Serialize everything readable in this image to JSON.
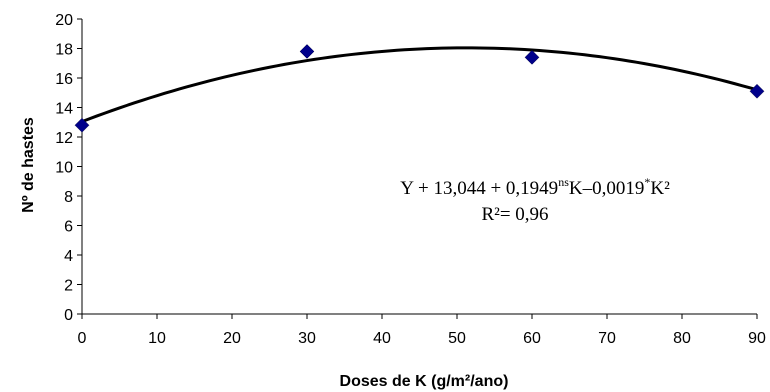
{
  "chart_data": {
    "type": "scatter",
    "xlabel": "Doses de K (g/m²/ano)",
    "ylabel": "Nº de hastes",
    "xlim": [
      0,
      90
    ],
    "ylim": [
      0,
      20
    ],
    "x_ticks": [
      0,
      10,
      20,
      30,
      40,
      50,
      60,
      70,
      80,
      90
    ],
    "y_ticks": [
      0,
      2,
      4,
      6,
      8,
      10,
      12,
      14,
      16,
      18,
      20
    ],
    "grid": false,
    "series": [
      {
        "x": [
          0,
          30,
          60,
          90
        ],
        "y": [
          12.8,
          17.8,
          17.4,
          15.1
        ],
        "marker": "diamond",
        "color": "#00008B"
      }
    ],
    "trendline": {
      "type": "polynomial",
      "degree": 2,
      "intercept": 13.044,
      "b1": 0.1949,
      "b2": -0.0019,
      "color": "#000000"
    },
    "annotation": {
      "equation_parts": [
        "Y + 13,044 + 0,1949",
        "ns",
        "K–0,0019",
        "*",
        "K²"
      ],
      "r2": "R²= 0,96"
    }
  }
}
